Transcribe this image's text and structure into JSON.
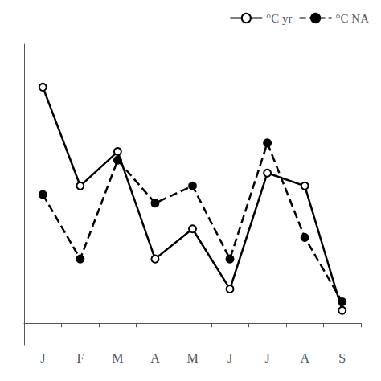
{
  "chart_data": {
    "type": "line",
    "categories": [
      "J",
      "F",
      "M",
      "A",
      "M",
      "J",
      "J",
      "A",
      "S"
    ],
    "series": [
      {
        "name": "°C yr",
        "color": "#000000",
        "line_style": "solid",
        "marker": "open circle",
        "values": [
          5.5,
          3.2,
          4.0,
          1.5,
          2.2,
          0.8,
          3.5,
          3.2,
          0.3
        ]
      },
      {
        "name": "°C NA",
        "color": "#000000",
        "line_style": "dashed",
        "marker": "filled circle",
        "values": [
          3.0,
          1.5,
          3.8,
          2.8,
          3.2,
          1.5,
          4.2,
          2.0,
          0.5
        ]
      }
    ],
    "ylim": [
      -0.5,
      6.5
    ],
    "tick_labels": "x",
    "grid": false,
    "legend": "upper right"
  }
}
